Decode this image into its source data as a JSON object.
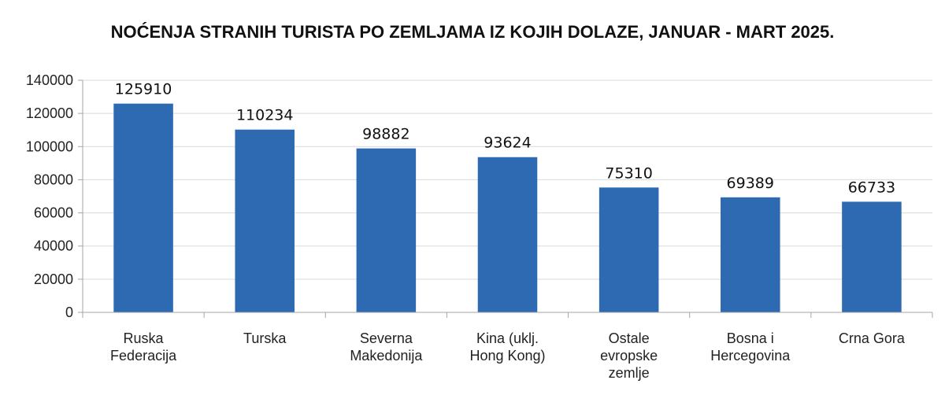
{
  "chart_data": {
    "type": "bar",
    "title": "NOĆENJA STRANIH TURISTA PO ZEMLJAMA IZ KOJIH DOLAZE, JANUAR - MART 2025.",
    "categories": [
      [
        "Ruska",
        "Federacija"
      ],
      [
        "Turska"
      ],
      [
        "Severna",
        "Makedonija"
      ],
      [
        "Kina (uklj.",
        "Hong Kong)"
      ],
      [
        "Ostale",
        "evropske",
        "zemlje"
      ],
      [
        "Bosna i",
        "Hercegovina"
      ],
      [
        "Crna Gora"
      ]
    ],
    "values": [
      125910,
      110234,
      98882,
      93624,
      75310,
      69389,
      66733
    ],
    "data_labels": [
      "125910",
      "110234",
      "98882",
      "93624",
      "75310",
      "69389",
      "66733"
    ],
    "yticks": [
      "0",
      "20000",
      "40000",
      "60000",
      "80000",
      "100000",
      "120000",
      "140000"
    ],
    "ylim": [
      0,
      140000
    ],
    "grid": true,
    "bar_color": "#2E6AB1",
    "grid_color": "#D9D9D9",
    "axis_color": "#A6A6A6"
  }
}
